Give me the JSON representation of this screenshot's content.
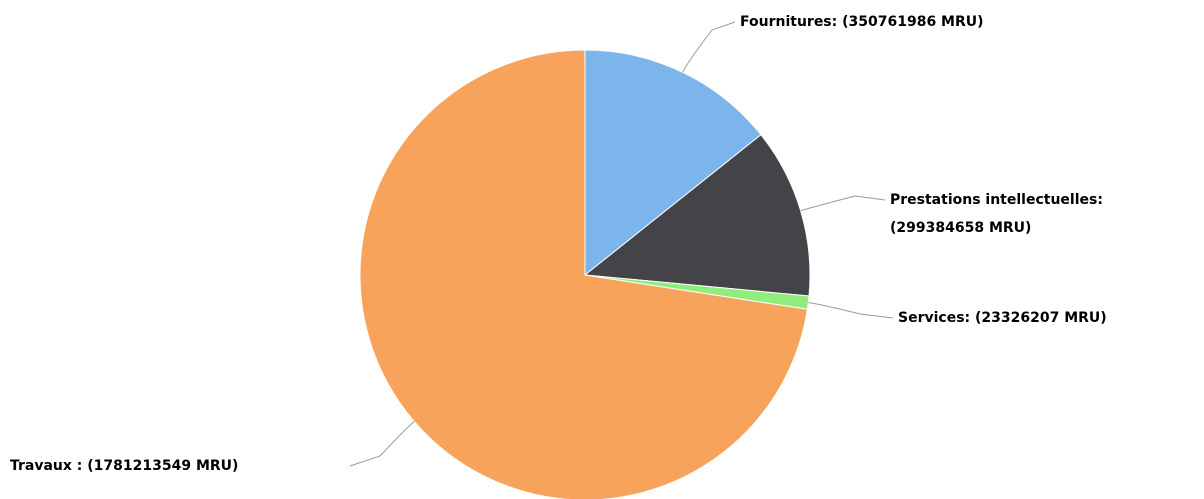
{
  "chart_data": {
    "type": "pie",
    "values": [
      350761986,
      299384658,
      23326207,
      1781213549
    ],
    "value_labels": [
      "Fournitures: (350761986 MRU)",
      "Prestations intellectuelles: (299384658 MRU)",
      "Services: (23326207 MRU)",
      "Travaux : (1781213549 MRU)"
    ],
    "colors": [
      "#7cb5ec",
      "#434348",
      "#90ed7d",
      "#f7a35c"
    ]
  }
}
